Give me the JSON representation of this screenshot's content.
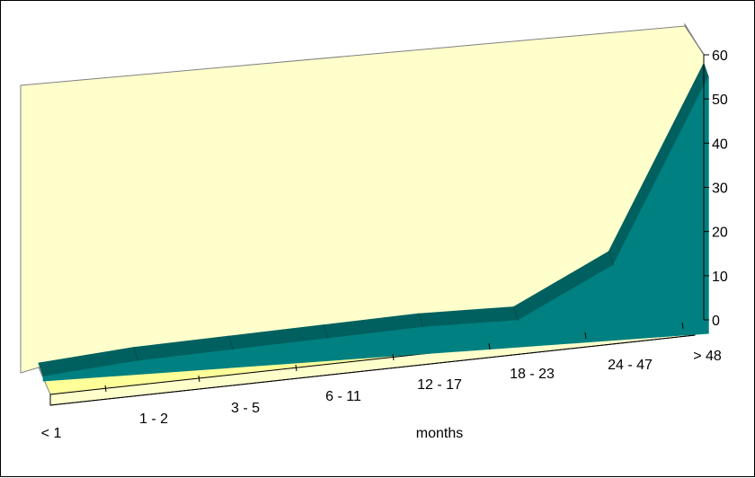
{
  "chart_data": {
    "type": "area",
    "categories": [
      "< 1",
      "1 - 2",
      "3 - 5",
      "6 - 11",
      "12 - 17",
      "18 - 23",
      "24 - 47",
      "> 48"
    ],
    "values": [
      1,
      3,
      4,
      5,
      6,
      6,
      17,
      58
    ],
    "xlabel": "months",
    "ylim": [
      0,
      60
    ],
    "yticks": [
      0,
      10,
      20,
      30,
      40,
      50,
      60
    ],
    "grid": false,
    "legend": "none",
    "view": "3d",
    "colors": {
      "series_front": "#008080",
      "series_top": "#00605F",
      "wall": "#FFFFCC",
      "floor": "#FFFF99",
      "floor_front": "#FFFFCC",
      "border": "#000000",
      "wall_edge": "#808080"
    }
  }
}
